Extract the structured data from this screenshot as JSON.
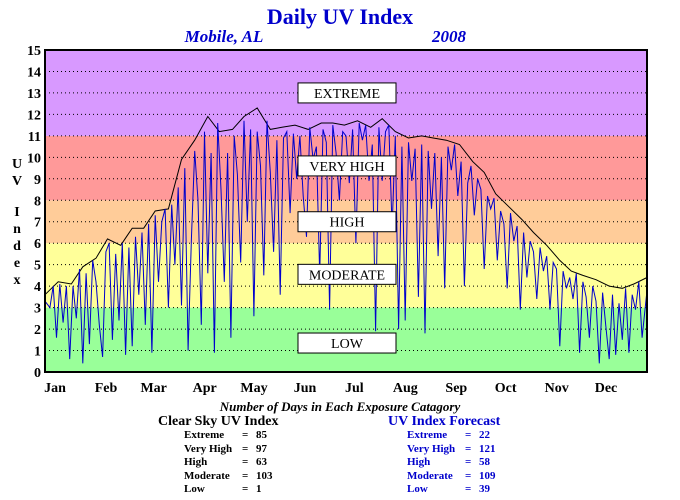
{
  "chart_data": {
    "type": "line",
    "title": "Daily UV Index",
    "location": "Mobile, AL",
    "year": "2008",
    "ylabel": "UV Index",
    "ylim": [
      0,
      15
    ],
    "yticks": [
      "0",
      "1",
      "2",
      "3",
      "4",
      "5",
      "6",
      "7",
      "8",
      "9",
      "10",
      "11",
      "12",
      "13",
      "14",
      "15"
    ],
    "xlim": [
      0,
      366
    ],
    "months": [
      "Jan",
      "Feb",
      "Mar",
      "Apr",
      "May",
      "Jun",
      "Jul",
      "Aug",
      "Sep",
      "Oct",
      "Nov",
      "Dec"
    ],
    "month_starts": [
      0,
      31,
      60,
      91,
      121,
      152,
      182,
      213,
      244,
      274,
      305,
      335
    ],
    "grid": "horizontal dotted",
    "zones": [
      {
        "label": "LOW",
        "from": 0,
        "to": 3,
        "color": "#99ff99"
      },
      {
        "label": "MODERATE",
        "from": 3,
        "to": 6,
        "color": "#ffff99"
      },
      {
        "label": "HIGH",
        "from": 6,
        "to": 8,
        "color": "#ffcc99"
      },
      {
        "label": "VERY HIGH",
        "from": 8,
        "to": 11,
        "color": "#ff9999"
      },
      {
        "label": "EXTREME",
        "from": 11,
        "to": 15,
        "color": "#d899ff"
      }
    ],
    "series": [
      {
        "name": "Clear Sky UV Index",
        "color": "#000000",
        "points": [
          [
            0,
            3.6
          ],
          [
            8,
            4.2
          ],
          [
            16,
            4.1
          ],
          [
            23,
            4.9
          ],
          [
            31,
            5.3
          ],
          [
            38,
            6.2
          ],
          [
            46,
            5.9
          ],
          [
            53,
            6.7
          ],
          [
            60,
            6.7
          ],
          [
            67,
            7.5
          ],
          [
            75,
            7.6
          ],
          [
            83,
            9.9
          ],
          [
            91,
            10.8
          ],
          [
            99,
            11.9
          ],
          [
            106,
            11.2
          ],
          [
            114,
            11.3
          ],
          [
            121,
            11.9
          ],
          [
            129,
            12.3
          ],
          [
            137,
            11.3
          ],
          [
            144,
            11.4
          ],
          [
            152,
            11.5
          ],
          [
            160,
            11.3
          ],
          [
            168,
            11.6
          ],
          [
            175,
            11.6
          ],
          [
            182,
            11.5
          ],
          [
            190,
            11.7
          ],
          [
            198,
            11.4
          ],
          [
            205,
            11.8
          ],
          [
            213,
            11.2
          ],
          [
            221,
            10.9
          ],
          [
            229,
            11.0
          ],
          [
            236,
            10.9
          ],
          [
            244,
            10.8
          ],
          [
            252,
            10.6
          ],
          [
            260,
            9.8
          ],
          [
            267,
            9.3
          ],
          [
            274,
            8.3
          ],
          [
            282,
            7.7
          ],
          [
            290,
            7.1
          ],
          [
            297,
            6.5
          ],
          [
            305,
            5.9
          ],
          [
            313,
            5.2
          ],
          [
            320,
            4.7
          ],
          [
            327,
            4.5
          ],
          [
            335,
            4.3
          ],
          [
            343,
            4.0
          ],
          [
            351,
            3.9
          ],
          [
            358,
            4.1
          ],
          [
            366,
            4.4
          ]
        ]
      },
      {
        "name": "UV Index Forecast",
        "color": "#0000cc",
        "points": [
          [
            0,
            3.3
          ],
          [
            3,
            3.0
          ],
          [
            5,
            4.0
          ],
          [
            7,
            1.6
          ],
          [
            9,
            4.1
          ],
          [
            11,
            2.3
          ],
          [
            13,
            4.0
          ],
          [
            15,
            0.6
          ],
          [
            17,
            4.0
          ],
          [
            19,
            2.5
          ],
          [
            21,
            4.8
          ],
          [
            23,
            0.4
          ],
          [
            25,
            4.6
          ],
          [
            27,
            1.3
          ],
          [
            29,
            5.2
          ],
          [
            31,
            4.2
          ],
          [
            33,
            2.2
          ],
          [
            35,
            0.7
          ],
          [
            37,
            5.6
          ],
          [
            39,
            6.0
          ],
          [
            41,
            1.5
          ],
          [
            43,
            5.5
          ],
          [
            45,
            2.4
          ],
          [
            47,
            6.0
          ],
          [
            49,
            0.8
          ],
          [
            51,
            5.8
          ],
          [
            53,
            1.2
          ],
          [
            55,
            6.3
          ],
          [
            57,
            3.6
          ],
          [
            59,
            6.5
          ],
          [
            61,
            2.2
          ],
          [
            63,
            6.9
          ],
          [
            65,
            0.9
          ],
          [
            67,
            7.3
          ],
          [
            69,
            4.2
          ],
          [
            71,
            7.0
          ],
          [
            73,
            7.6
          ],
          [
            75,
            3.0
          ],
          [
            77,
            7.8
          ],
          [
            79,
            5.0
          ],
          [
            81,
            8.6
          ],
          [
            83,
            3.1
          ],
          [
            85,
            9.5
          ],
          [
            87,
            1.0
          ],
          [
            89,
            6.2
          ],
          [
            91,
            10.3
          ],
          [
            93,
            8.0
          ],
          [
            95,
            2.2
          ],
          [
            97,
            11.2
          ],
          [
            99,
            4.6
          ],
          [
            101,
            10.2
          ],
          [
            103,
            0.9
          ],
          [
            105,
            11.6
          ],
          [
            107,
            8.5
          ],
          [
            109,
            4.2
          ],
          [
            111,
            10.2
          ],
          [
            113,
            1.6
          ],
          [
            115,
            11.0
          ],
          [
            117,
            9.2
          ],
          [
            119,
            5.1
          ],
          [
            121,
            11.7
          ],
          [
            123,
            7.0
          ],
          [
            125,
            11.3
          ],
          [
            127,
            2.6
          ],
          [
            129,
            11.2
          ],
          [
            131,
            9.6
          ],
          [
            133,
            4.5
          ],
          [
            135,
            11.7
          ],
          [
            137,
            9.3
          ],
          [
            139,
            5.6
          ],
          [
            141,
            10.8
          ],
          [
            143,
            3.6
          ],
          [
            145,
            10.9
          ],
          [
            147,
            11.2
          ],
          [
            149,
            7.4
          ],
          [
            151,
            11.1
          ],
          [
            153,
            9.0
          ],
          [
            155,
            11.0
          ],
          [
            157,
            8.2
          ],
          [
            159,
            6.3
          ],
          [
            161,
            11.4
          ],
          [
            163,
            9.9
          ],
          [
            165,
            10.5
          ],
          [
            167,
            4.5
          ],
          [
            169,
            11.3
          ],
          [
            171,
            10.7
          ],
          [
            173,
            2.9
          ],
          [
            175,
            11.5
          ],
          [
            177,
            10.2
          ],
          [
            179,
            8.0
          ],
          [
            181,
            11.2
          ],
          [
            183,
            11.0
          ],
          [
            185,
            8.8
          ],
          [
            187,
            11.3
          ],
          [
            189,
            6.0
          ],
          [
            191,
            11.6
          ],
          [
            193,
            10.8
          ],
          [
            195,
            11.5
          ],
          [
            197,
            8.9
          ],
          [
            199,
            10.6
          ],
          [
            201,
            1.9
          ],
          [
            203,
            11.4
          ],
          [
            205,
            8.9
          ],
          [
            207,
            11.2
          ],
          [
            209,
            11.5
          ],
          [
            211,
            6.7
          ],
          [
            213,
            11.0
          ],
          [
            215,
            2.0
          ],
          [
            217,
            10.5
          ],
          [
            219,
            2.4
          ],
          [
            221,
            10.7
          ],
          [
            223,
            8.9
          ],
          [
            225,
            10.4
          ],
          [
            227,
            3.5
          ],
          [
            229,
            10.6
          ],
          [
            231,
            1.8
          ],
          [
            233,
            10.3
          ],
          [
            235,
            7.6
          ],
          [
            237,
            10.2
          ],
          [
            239,
            5.4
          ],
          [
            241,
            10.0
          ],
          [
            243,
            3.9
          ],
          [
            245,
            10.5
          ],
          [
            247,
            9.4
          ],
          [
            249,
            10.6
          ],
          [
            251,
            8.2
          ],
          [
            253,
            9.8
          ],
          [
            255,
            4.0
          ],
          [
            257,
            8.8
          ],
          [
            259,
            9.6
          ],
          [
            261,
            7.3
          ],
          [
            263,
            9.0
          ],
          [
            265,
            8.5
          ],
          [
            267,
            4.8
          ],
          [
            269,
            8.2
          ],
          [
            271,
            7.6
          ],
          [
            273,
            8.1
          ],
          [
            275,
            5.2
          ],
          [
            277,
            7.5
          ],
          [
            279,
            6.9
          ],
          [
            281,
            3.9
          ],
          [
            283,
            7.4
          ],
          [
            285,
            6.1
          ],
          [
            287,
            6.8
          ],
          [
            289,
            2.9
          ],
          [
            291,
            6.5
          ],
          [
            293,
            4.4
          ],
          [
            295,
            6.1
          ],
          [
            297,
            5.6
          ],
          [
            299,
            3.4
          ],
          [
            301,
            5.8
          ],
          [
            303,
            4.7
          ],
          [
            305,
            5.4
          ],
          [
            307,
            2.9
          ],
          [
            309,
            5.1
          ],
          [
            311,
            4.8
          ],
          [
            313,
            1.2
          ],
          [
            315,
            4.7
          ],
          [
            317,
            3.9
          ],
          [
            319,
            4.4
          ],
          [
            321,
            3.4
          ],
          [
            323,
            4.6
          ],
          [
            325,
            0.9
          ],
          [
            327,
            4.2
          ],
          [
            329,
            3.5
          ],
          [
            331,
            1.6
          ],
          [
            333,
            4.0
          ],
          [
            335,
            3.3
          ],
          [
            337,
            0.4
          ],
          [
            339,
            3.7
          ],
          [
            341,
            2.1
          ],
          [
            343,
            0.6
          ],
          [
            345,
            3.6
          ],
          [
            347,
            0.8
          ],
          [
            349,
            3.2
          ],
          [
            351,
            1.5
          ],
          [
            353,
            3.9
          ],
          [
            355,
            0.9
          ],
          [
            357,
            3.6
          ],
          [
            359,
            2.9
          ],
          [
            361,
            4.2
          ],
          [
            363,
            1.6
          ],
          [
            366,
            3.8
          ]
        ]
      }
    ]
  },
  "stats": {
    "caption": "Number of Days in Each Exposure Catagory",
    "clear": {
      "title": "Clear Sky UV Index",
      "rows": [
        {
          "label": "Extreme",
          "value": "85"
        },
        {
          "label": "Very High",
          "value": "97"
        },
        {
          "label": "High",
          "value": "63"
        },
        {
          "label": "Moderate",
          "value": "103"
        },
        {
          "label": "Low",
          "value": "1"
        }
      ]
    },
    "forecast": {
      "title": "UV Index Forecast",
      "rows": [
        {
          "label": "Extreme",
          "value": "22"
        },
        {
          "label": "Very High",
          "value": "121"
        },
        {
          "label": "High",
          "value": "58"
        },
        {
          "label": "Moderate",
          "value": "109"
        },
        {
          "label": "Low",
          "value": "39"
        }
      ]
    }
  }
}
